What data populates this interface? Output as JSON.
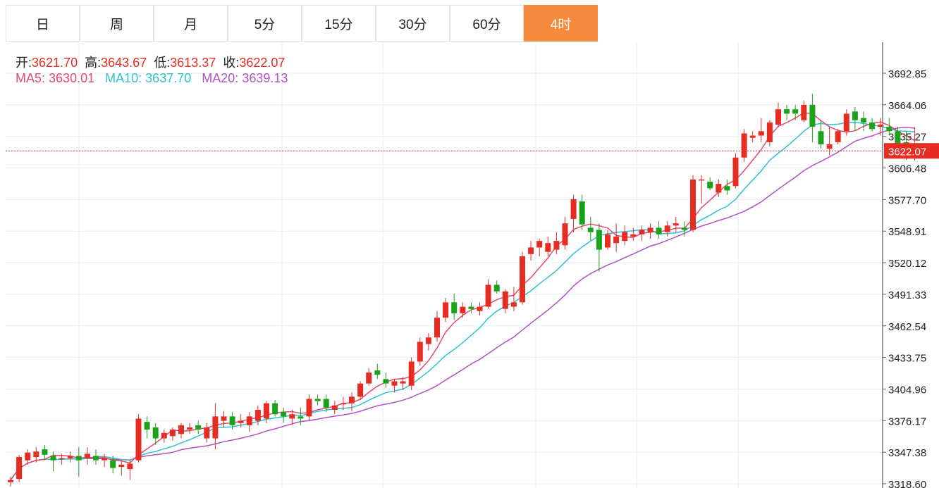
{
  "tabs": [
    {
      "label": "日",
      "active": false
    },
    {
      "label": "周",
      "active": false
    },
    {
      "label": "月",
      "active": false
    },
    {
      "label": "5分",
      "active": false
    },
    {
      "label": "15分",
      "active": false
    },
    {
      "label": "30分",
      "active": false
    },
    {
      "label": "60分",
      "active": false
    },
    {
      "label": "4时",
      "active": true
    }
  ],
  "ohlc": {
    "open_label": "开:",
    "open": "3621.70",
    "high_label": "高:",
    "high": "3643.67",
    "low_label": "低:",
    "low": "3613.37",
    "close_label": "收:",
    "close": "3622.07"
  },
  "ma": {
    "ma5_label": "MA5:",
    "ma5": "3630.01",
    "ma10_label": "MA10:",
    "ma10": "3637.70",
    "ma20_label": "MA20:",
    "ma20": "3639.13"
  },
  "colors": {
    "up": "#e62c23",
    "down": "#1aa31a",
    "ma5": "#e24b6e",
    "ma10": "#2ec1d0",
    "ma20": "#b152c3",
    "grid": "#e6edf2",
    "active_tab": "#f5893c",
    "last_price_bg": "#e62c23"
  },
  "chart_data": {
    "type": "candlestick",
    "y_ticks": [
      "3692.85",
      "3664.06",
      "3635.27",
      "3606.48",
      "3577.70",
      "3548.91",
      "3520.12",
      "3491.33",
      "3462.54",
      "3433.75",
      "3404.96",
      "3376.17",
      "3347.38",
      "3318.60"
    ],
    "ylim": [
      3318.6,
      3692.85
    ],
    "last_price": "3622.07",
    "candles": [
      [
        3320,
        3325,
        3316,
        3322
      ],
      [
        3323,
        3345,
        3320,
        3343
      ],
      [
        3340,
        3350,
        3336,
        3347
      ],
      [
        3343,
        3352,
        3338,
        3348
      ],
      [
        3350,
        3354,
        3340,
        3345
      ],
      [
        3344,
        3348,
        3330,
        3340
      ],
      [
        3342,
        3346,
        3336,
        3342
      ],
      [
        3342,
        3348,
        3338,
        3344
      ],
      [
        3344,
        3352,
        3325,
        3340
      ],
      [
        3342,
        3352,
        3336,
        3346
      ],
      [
        3344,
        3350,
        3336,
        3340
      ],
      [
        3340,
        3346,
        3334,
        3342
      ],
      [
        3340,
        3344,
        3328,
        3333
      ],
      [
        3334,
        3340,
        3326,
        3336
      ],
      [
        3332,
        3340,
        3322,
        3337
      ],
      [
        3340,
        3382,
        3338,
        3378
      ],
      [
        3375,
        3380,
        3360,
        3368
      ],
      [
        3370,
        3374,
        3354,
        3360
      ],
      [
        3360,
        3368,
        3356,
        3365
      ],
      [
        3362,
        3370,
        3358,
        3368
      ],
      [
        3364,
        3374,
        3360,
        3372
      ],
      [
        3368,
        3374,
        3364,
        3370
      ],
      [
        3372,
        3376,
        3364,
        3368
      ],
      [
        3360,
        3374,
        3356,
        3370
      ],
      [
        3360,
        3392,
        3350,
        3380
      ],
      [
        3376,
        3385,
        3370,
        3380
      ],
      [
        3380,
        3384,
        3368,
        3372
      ],
      [
        3374,
        3382,
        3370,
        3376
      ],
      [
        3372,
        3384,
        3366,
        3380
      ],
      [
        3376,
        3390,
        3372,
        3386
      ],
      [
        3378,
        3394,
        3374,
        3392
      ],
      [
        3392,
        3395,
        3380,
        3382
      ],
      [
        3384,
        3388,
        3374,
        3380
      ],
      [
        3378,
        3386,
        3372,
        3382
      ],
      [
        3380,
        3388,
        3372,
        3378
      ],
      [
        3380,
        3400,
        3376,
        3396
      ],
      [
        3396,
        3400,
        3390,
        3394
      ],
      [
        3396,
        3400,
        3384,
        3388
      ],
      [
        3386,
        3394,
        3382,
        3390
      ],
      [
        3392,
        3398,
        3386,
        3392
      ],
      [
        3392,
        3402,
        3385,
        3398
      ],
      [
        3398,
        3412,
        3395,
        3410
      ],
      [
        3410,
        3424,
        3408,
        3420
      ],
      [
        3422,
        3428,
        3414,
        3418
      ],
      [
        3414,
        3420,
        3406,
        3410
      ],
      [
        3408,
        3414,
        3402,
        3412
      ],
      [
        3410,
        3416,
        3404,
        3412
      ],
      [
        3408,
        3434,
        3404,
        3430
      ],
      [
        3430,
        3452,
        3426,
        3448
      ],
      [
        3446,
        3456,
        3440,
        3452
      ],
      [
        3452,
        3476,
        3448,
        3470
      ],
      [
        3470,
        3488,
        3466,
        3484
      ],
      [
        3484,
        3492,
        3468,
        3474
      ],
      [
        3474,
        3484,
        3470,
        3480
      ],
      [
        3480,
        3484,
        3474,
        3478
      ],
      [
        3476,
        3484,
        3472,
        3480
      ],
      [
        3480,
        3505,
        3478,
        3500
      ],
      [
        3500,
        3504,
        3492,
        3494
      ],
      [
        3478,
        3496,
        3474,
        3494
      ],
      [
        3480,
        3498,
        3476,
        3484
      ],
      [
        3484,
        3530,
        3482,
        3526
      ],
      [
        3528,
        3540,
        3522,
        3534
      ],
      [
        3534,
        3542,
        3526,
        3540
      ],
      [
        3530,
        3544,
        3526,
        3538
      ],
      [
        3532,
        3548,
        3528,
        3540
      ],
      [
        3536,
        3562,
        3532,
        3556
      ],
      [
        3560,
        3582,
        3548,
        3578
      ],
      [
        3576,
        3582,
        3550,
        3555
      ],
      [
        3552,
        3562,
        3540,
        3548
      ],
      [
        3550,
        3556,
        3512,
        3532
      ],
      [
        3534,
        3550,
        3532,
        3546
      ],
      [
        3538,
        3556,
        3530,
        3544
      ],
      [
        3540,
        3554,
        3536,
        3548
      ],
      [
        3544,
        3552,
        3540,
        3546
      ],
      [
        3546,
        3554,
        3540,
        3550
      ],
      [
        3548,
        3556,
        3542,
        3552
      ],
      [
        3552,
        3558,
        3542,
        3546
      ],
      [
        3548,
        3558,
        3544,
        3554
      ],
      [
        3554,
        3562,
        3548,
        3556
      ],
      [
        3552,
        3558,
        3544,
        3550
      ],
      [
        3550,
        3600,
        3548,
        3596
      ],
      [
        3596,
        3600,
        3574,
        3596
      ],
      [
        3594,
        3598,
        3586,
        3588
      ],
      [
        3584,
        3596,
        3580,
        3592
      ],
      [
        3590,
        3596,
        3582,
        3586
      ],
      [
        3590,
        3620,
        3588,
        3616
      ],
      [
        3616,
        3642,
        3612,
        3638
      ],
      [
        3634,
        3640,
        3630,
        3636
      ],
      [
        3636,
        3652,
        3630,
        3640
      ],
      [
        3630,
        3650,
        3626,
        3648
      ],
      [
        3646,
        3666,
        3644,
        3660
      ],
      [
        3660,
        3664,
        3650,
        3656
      ],
      [
        3660,
        3664,
        3650,
        3656
      ],
      [
        3650,
        3668,
        3648,
        3664
      ],
      [
        3664,
        3674,
        3630,
        3644
      ],
      [
        3640,
        3650,
        3624,
        3628
      ],
      [
        3624,
        3644,
        3618,
        3628
      ],
      [
        3630,
        3642,
        3628,
        3640
      ],
      [
        3640,
        3660,
        3636,
        3656
      ],
      [
        3658,
        3662,
        3640,
        3650
      ],
      [
        3652,
        3658,
        3640,
        3648
      ],
      [
        3648,
        3652,
        3640,
        3642
      ],
      [
        3644,
        3652,
        3636,
        3646
      ],
      [
        3644,
        3652,
        3636,
        3640
      ],
      [
        3640,
        3644,
        3620,
        3624
      ],
      [
        3630,
        3640,
        3614,
        3626
      ],
      [
        3621.7,
        3643.67,
        3613.37,
        3622.07
      ]
    ]
  }
}
